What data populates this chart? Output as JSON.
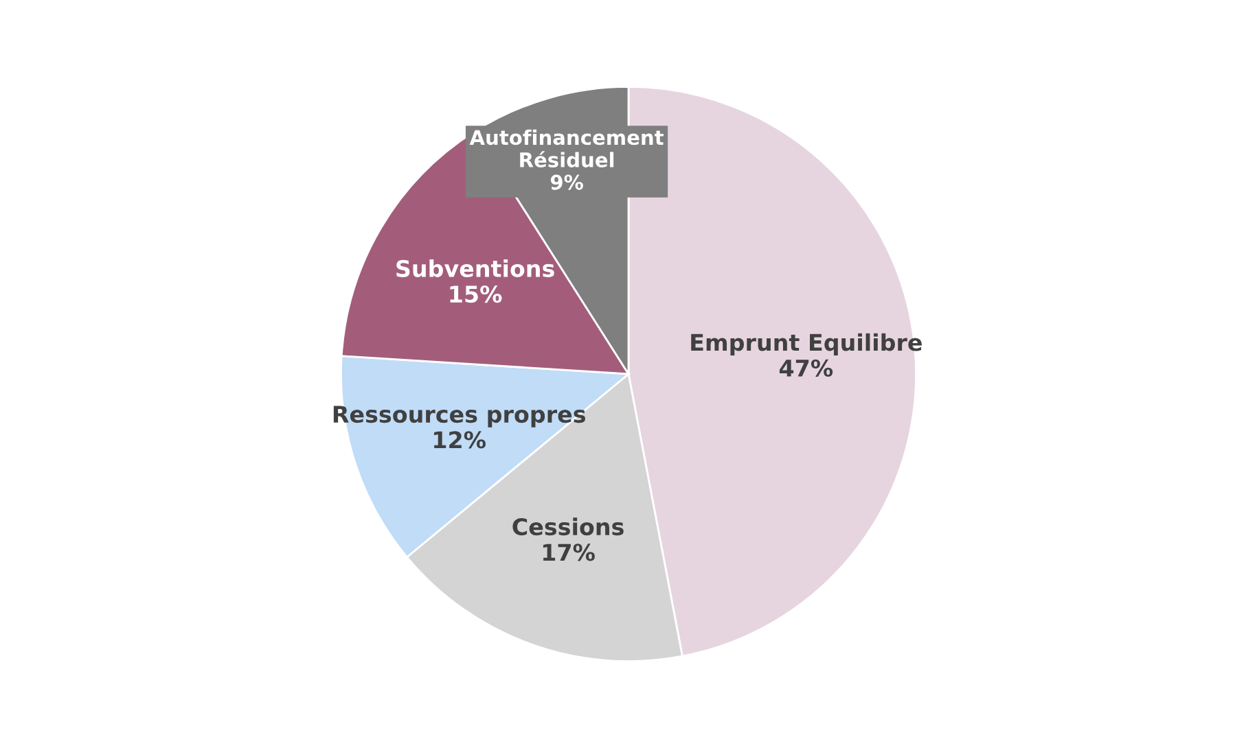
{
  "chart_data": {
    "type": "pie",
    "categories": [
      "Emprunt Equilibre",
      "Cessions",
      "Ressources propres",
      "Subventions",
      "Autofinancement Résiduel"
    ],
    "values": [
      47,
      17,
      12,
      15,
      9
    ],
    "value_labels": [
      "47%",
      "17%",
      "12%",
      "15%",
      "9%"
    ],
    "colors": [
      "#e6d5df",
      "#d4d4d4",
      "#c0dcf7",
      "#a35d7b",
      "#7f7f7f"
    ],
    "legend": false
  }
}
